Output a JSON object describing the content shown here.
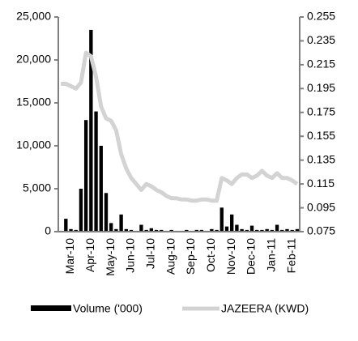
{
  "chart_data": {
    "type": "bar-line",
    "categories": [
      null,
      null,
      "Mar-10",
      null,
      null,
      null,
      "Apr-10",
      null,
      null,
      null,
      "May-10",
      null,
      null,
      null,
      "Jun-10",
      null,
      null,
      null,
      "Jul-10",
      null,
      null,
      null,
      "Aug-10",
      null,
      null,
      null,
      "Sep-10",
      null,
      null,
      null,
      "Oct-10",
      null,
      null,
      null,
      "Nov-10",
      null,
      null,
      null,
      "Dec-10",
      null,
      null,
      null,
      "Jan-11",
      null,
      null,
      null,
      "Feb-11",
      null
    ],
    "series": [
      {
        "name": "Volume ('000)",
        "type": "bar",
        "color": "#000000",
        "values": [
          100,
          1500,
          300,
          200,
          5000,
          13000,
          23500,
          14000,
          10000,
          4500,
          1000,
          300,
          2000,
          300,
          200,
          100,
          800,
          200,
          400,
          200,
          200,
          100,
          200,
          100,
          100,
          200,
          100,
          200,
          200,
          100,
          300,
          200,
          2800,
          600,
          2000,
          800,
          300,
          200,
          700,
          200,
          200,
          300,
          200,
          800,
          200,
          300,
          200,
          300
        ]
      },
      {
        "name": "JAZEERA (KWD)",
        "type": "line",
        "axis": "y2",
        "color": "#d3d3d3",
        "values": [
          0.199,
          0.199,
          0.197,
          0.195,
          0.2,
          0.225,
          0.222,
          0.205,
          0.18,
          0.17,
          0.168,
          0.16,
          0.14,
          0.128,
          0.12,
          0.115,
          0.11,
          0.115,
          0.113,
          0.11,
          0.108,
          0.105,
          0.103,
          0.103,
          0.102,
          0.102,
          0.101,
          0.101,
          0.102,
          0.102,
          0.101,
          0.101,
          0.12,
          0.118,
          0.115,
          0.12,
          0.123,
          0.123,
          0.12,
          0.122,
          0.126,
          0.122,
          0.12,
          0.124,
          0.12,
          0.12,
          0.118,
          0.115
        ]
      }
    ],
    "ylim": [
      0,
      25000
    ],
    "yticks": [
      0,
      {
        "value": 5000,
        "label": "5,000"
      },
      {
        "value": 10000,
        "label": "10,000"
      },
      {
        "value": 15000,
        "label": "15,000"
      },
      {
        "value": 20000,
        "label": "20,000"
      },
      {
        "value": 25000,
        "label": "25,000"
      }
    ],
    "y2lim": [
      0.075,
      0.255
    ],
    "y2ticks": [
      0.075,
      0.095,
      0.115,
      0.135,
      0.155,
      0.175,
      0.195,
      0.215,
      0.235,
      0.255
    ],
    "grid": false,
    "legend": "bottom"
  }
}
